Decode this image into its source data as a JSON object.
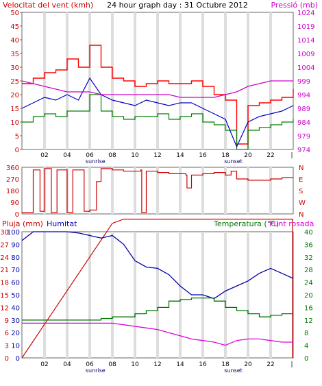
{
  "title": "24 hour graph day : 31 Octubre 2012",
  "x_ticks": [
    "02",
    "04",
    "06",
    "08",
    "10",
    "12",
    "14",
    "16",
    "18",
    "20",
    "22",
    "|"
  ],
  "sunrise_label": "sunrise",
  "sunset_label": "sunset",
  "colors": {
    "wind": "#cc0000",
    "gust": "#ff0000",
    "wind_avg": "#0000cc",
    "wind_low": "#008000",
    "pressure": "#cc00cc",
    "direction": "#cc0000",
    "rain": "#cc0000",
    "humidity": "#0000aa",
    "temperature": "#007700",
    "dewpoint": "#dd00dd",
    "frame": "#666666",
    "grid": "#dddddd"
  },
  "chart_data": [
    {
      "type": "line",
      "title": "Velocitat del vent (kmh)",
      "ylabel_right": "Pressió (mb)",
      "x": [
        0,
        1,
        2,
        3,
        4,
        5,
        6,
        7,
        8,
        9,
        10,
        11,
        12,
        13,
        14,
        15,
        16,
        17,
        18,
        19,
        20,
        21,
        22,
        23,
        24
      ],
      "ylim": [
        0,
        50
      ],
      "y2lim": [
        974,
        1024
      ],
      "left_ticks": [
        "0",
        "5",
        "10",
        "15",
        "20",
        "25",
        "30",
        "35",
        "40",
        "45",
        "50"
      ],
      "right_ticks": [
        "974",
        "979",
        "984",
        "989",
        "994",
        "999",
        "1004",
        "1009",
        "1014",
        "1019",
        "1024"
      ],
      "series": [
        {
          "values": [
            24,
            26,
            28,
            29,
            33,
            30,
            38,
            30,
            26,
            25,
            23,
            24,
            25,
            24,
            24,
            25,
            23,
            20,
            18,
            2,
            16,
            17,
            18,
            19,
            22
          ]
        },
        {
          "values": [
            15,
            17,
            19,
            18,
            20,
            18,
            26,
            20,
            18,
            17,
            16,
            18,
            17,
            16,
            17,
            17,
            15,
            13,
            11,
            1,
            10,
            12,
            13,
            14,
            16
          ]
        },
        {
          "values": [
            10,
            12,
            13,
            12,
            14,
            14,
            20,
            14,
            12,
            11,
            12,
            12,
            13,
            11,
            12,
            13,
            10,
            9,
            7,
            0,
            7,
            8,
            9,
            10,
            11
          ]
        },
        {
          "values": [
            999,
            998,
            997,
            996,
            995,
            995,
            995,
            994,
            994,
            994,
            994,
            994,
            994,
            994,
            993,
            993,
            993,
            993,
            994,
            995,
            997,
            998,
            999,
            999,
            999
          ]
        }
      ]
    },
    {
      "type": "line",
      "x": [
        0,
        0.9,
        1.0,
        1.5,
        1.6,
        1.9,
        2.0,
        2.5,
        2.6,
        3.0,
        3.1,
        3.9,
        4.0,
        4.4,
        4.5,
        5.0,
        5.5,
        6.0,
        6.5,
        6.6,
        7.0,
        8.0,
        9.0,
        10.0,
        10.5,
        10.6,
        11.0,
        12.0,
        13.0,
        14.0,
        14.5,
        14.6,
        15.0,
        16.0,
        17.0,
        18.0,
        18.5,
        19.0,
        20.0,
        21.0,
        22.0,
        23.0,
        24.0
      ],
      "ylim": [
        0,
        360
      ],
      "left_ticks": [
        "0",
        "90",
        "180",
        "270",
        "360"
      ],
      "right_ticks": [
        "N",
        "W",
        "S",
        "E",
        "N"
      ],
      "values": [
        10,
        10,
        340,
        340,
        20,
        20,
        350,
        350,
        10,
        10,
        340,
        340,
        10,
        10,
        340,
        340,
        20,
        30,
        30,
        250,
        350,
        340,
        330,
        330,
        340,
        10,
        330,
        320,
        310,
        310,
        300,
        200,
        300,
        310,
        320,
        300,
        330,
        270,
        260,
        260,
        270,
        280,
        280
      ]
    },
    {
      "type": "line",
      "left_label": "Pluja (mm)",
      "center_label": "Humitat",
      "right_label": "Temperatura (°C)",
      "right_label_2": "Punt rosada",
      "x": [
        0,
        1,
        2,
        3,
        4,
        5,
        6,
        7,
        8,
        9,
        10,
        11,
        12,
        13,
        14,
        15,
        16,
        17,
        18,
        19,
        20,
        21,
        22,
        23,
        24
      ],
      "ylim": [
        0,
        100
      ],
      "left_ticks": [
        "0",
        "3",
        "6",
        "9",
        "12",
        "15",
        "18",
        "21",
        "24",
        "27",
        "30"
      ],
      "left_ticks_2": [
        "0",
        "10",
        "20",
        "30",
        "40",
        "50",
        "60",
        "70",
        "80",
        "90",
        "100"
      ],
      "right_ticks": [
        "0",
        "4",
        "8",
        "12",
        "16",
        "20",
        "24",
        "28",
        "32",
        "36",
        "40"
      ],
      "series": [
        {
          "values": [
            0,
            4,
            8,
            12,
            16,
            20,
            24,
            28,
            32,
            33,
            33,
            33,
            33,
            33,
            33,
            33,
            33,
            33,
            33,
            33,
            33,
            33,
            33,
            33,
            33
          ]
        },
        {
          "values": [
            93,
            100,
            100,
            100,
            100,
            99,
            97,
            95,
            97,
            90,
            77,
            72,
            71,
            66,
            57,
            50,
            50,
            47,
            53,
            57,
            61,
            67,
            71,
            67,
            63
          ]
        },
        {
          "values": [
            12,
            12,
            12,
            12,
            12,
            12,
            12,
            12.5,
            13,
            13,
            14,
            15,
            16,
            18,
            18.5,
            19,
            19,
            18,
            16,
            15,
            14,
            13,
            13.5,
            14,
            14
          ]
        },
        {
          "values": [
            11,
            11,
            11,
            11,
            11,
            11,
            11,
            11,
            11,
            10.5,
            10,
            9.5,
            9,
            8,
            7,
            6,
            5.5,
            5,
            4,
            5.5,
            6,
            6,
            5.5,
            5,
            5
          ]
        }
      ]
    }
  ]
}
